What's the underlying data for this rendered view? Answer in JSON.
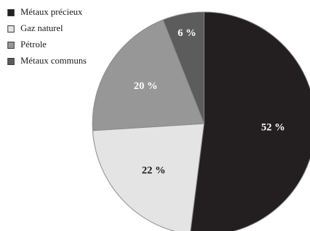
{
  "chart_data": {
    "type": "pie",
    "slices": [
      {
        "label": "Métaux précieux",
        "value": 52,
        "value_label": "52 %",
        "color": "#231f20",
        "label_color": "#ffffff"
      },
      {
        "label": "Gaz naturel",
        "value": 22,
        "value_label": "22 %",
        "color": "#e4e4e4",
        "label_color": "#1a1a1a"
      },
      {
        "label": "Pétrole",
        "value": 20,
        "value_label": "20 %",
        "color": "#979797",
        "label_color": "#ffffff"
      },
      {
        "label": "Métaux communs",
        "value": 6,
        "value_label": "6 %",
        "color": "#5c5c5c",
        "label_color": "#ffffff"
      }
    ],
    "start_angle": "12 o'clock",
    "direction": "clockwise",
    "legend_position": "top-left",
    "edge_color": "#8a8a8a"
  }
}
